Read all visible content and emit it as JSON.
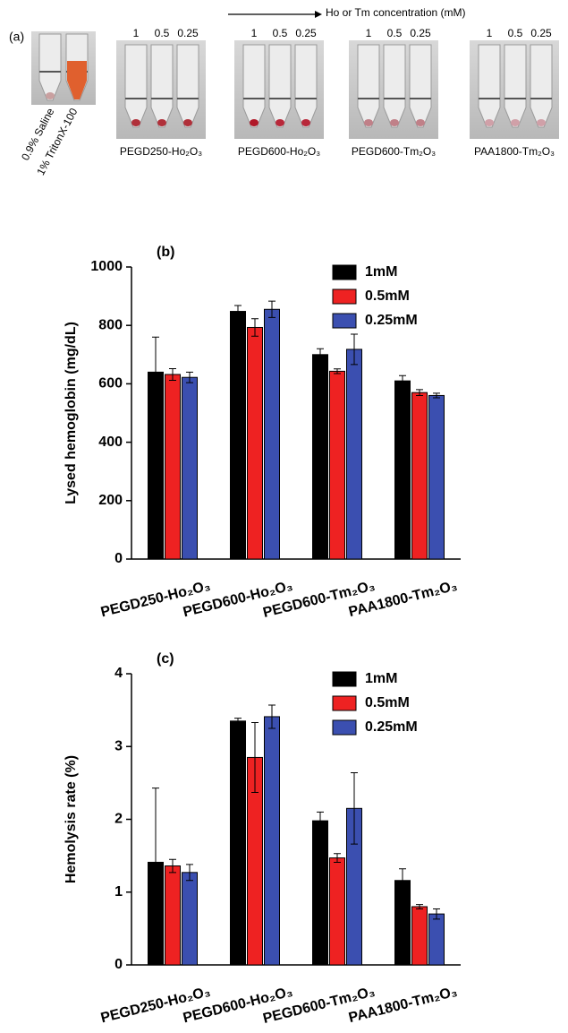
{
  "panel_a": {
    "label": "(a)",
    "arrow_text": "Ho or Tm concentration (mM)",
    "concentrations": [
      "1",
      "0.5",
      "0.25"
    ],
    "controls": [
      "0.9% Saline",
      "1% TritonX-100"
    ],
    "groups": [
      "PEGD250-Ho₂O₃",
      "PEGD600-Ho₂O₃",
      "PEGD600-Tm₂O₃",
      "PAA1800-Tm₂O₃"
    ]
  },
  "chart_data": [
    {
      "type": "bar",
      "label": "(b)",
      "y_label": "Lysed hemoglobin (mg/dL)",
      "categories": [
        "PEGD250-Ho₂O₃",
        "PEGD600-Ho₂O₃",
        "PEGD600-Tm₂O₃",
        "PAA1800-Tm₂O₃"
      ],
      "series": [
        {
          "name": "1mM",
          "color": "#000000",
          "values": [
            640,
            848,
            700,
            610
          ],
          "errors": [
            120,
            20,
            20,
            18
          ]
        },
        {
          "name": "0.5mM",
          "color": "#ee2222",
          "values": [
            632,
            793,
            643,
            570
          ],
          "errors": [
            20,
            30,
            8,
            10
          ]
        },
        {
          "name": "0.25mM",
          "color": "#3b4fb0",
          "values": [
            622,
            855,
            718,
            560
          ],
          "errors": [
            18,
            28,
            52,
            8
          ]
        }
      ],
      "ylim": [
        0,
        1000
      ],
      "yticks": [
        0,
        200,
        400,
        600,
        800,
        1000
      ],
      "legend": "upper right"
    },
    {
      "type": "bar",
      "label": "(c)",
      "y_label": "Hemolysis rate (%)",
      "categories": [
        "PEGD250-Ho₂O₃",
        "PEGD600-Ho₂O₃",
        "PEGD600-Tm₂O₃",
        "PAA1800-Tm₂O₃"
      ],
      "series": [
        {
          "name": "1mM",
          "color": "#000000",
          "values": [
            1.41,
            3.35,
            1.98,
            1.16
          ],
          "errors": [
            1.02,
            0.04,
            0.12,
            0.16
          ]
        },
        {
          "name": "0.5mM",
          "color": "#ee2222",
          "values": [
            1.36,
            2.85,
            1.47,
            0.8
          ],
          "errors": [
            0.09,
            0.48,
            0.06,
            0.03
          ]
        },
        {
          "name": "0.25mM",
          "color": "#3b4fb0",
          "values": [
            1.27,
            3.41,
            2.15,
            0.7
          ],
          "errors": [
            0.11,
            0.16,
            0.49,
            0.07
          ]
        }
      ],
      "ylim": [
        0,
        4
      ],
      "yticks": [
        0,
        1,
        2,
        3,
        4
      ],
      "legend": "upper right"
    }
  ]
}
